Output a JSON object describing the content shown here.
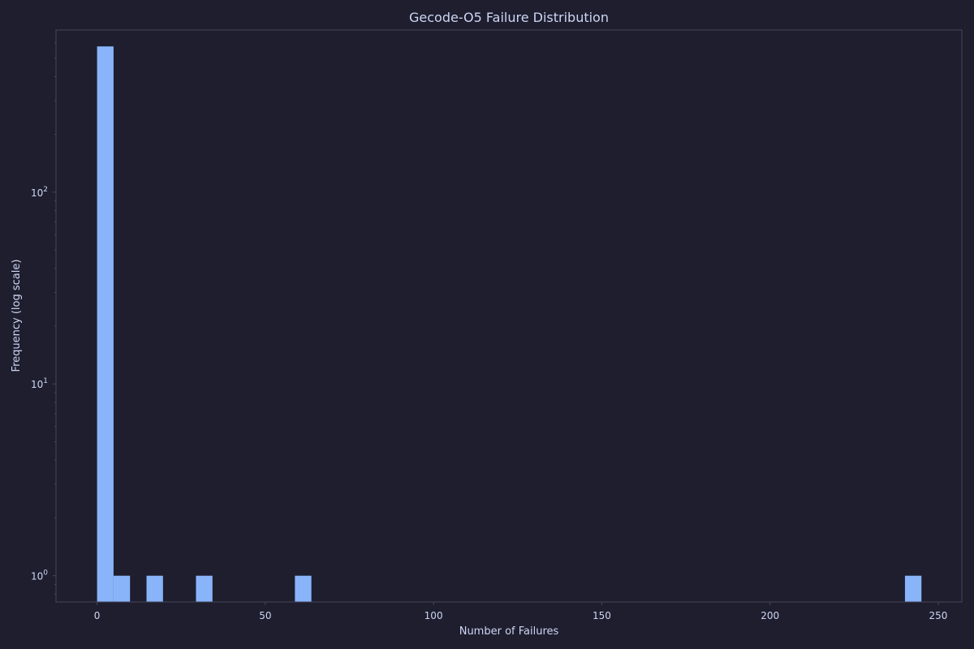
{
  "colors": {
    "background": "#1e1e2e",
    "bar": "#89b4fa",
    "text": "#cdd6f4",
    "axis": "#45475a"
  },
  "chart_data": {
    "type": "bar",
    "title": "Gecode-O5 Failure Distribution",
    "xlabel": "Number of Failures",
    "ylabel": "Frequency (log scale)",
    "yscale": "log",
    "xlim": [
      -12.2,
      257
    ],
    "ylim": [
      0.73,
      700
    ],
    "grid": false,
    "x_ticks": [
      0,
      50,
      100,
      150,
      200,
      250
    ],
    "x_tick_labels": [
      "0",
      "50",
      "100",
      "150",
      "200",
      "250"
    ],
    "y_ticks": [
      1,
      10,
      100
    ],
    "y_tick_labels": [
      {
        "base": "10",
        "exp": "0"
      },
      {
        "base": "10",
        "exp": "1"
      },
      {
        "base": "10",
        "exp": "2"
      }
    ],
    "bin_width": 4.9,
    "bins": [
      {
        "start": 0,
        "count": 575
      },
      {
        "start": 4.9,
        "count": 1
      },
      {
        "start": 14.7,
        "count": 1
      },
      {
        "start": 29.4,
        "count": 1
      },
      {
        "start": 58.8,
        "count": 1
      },
      {
        "start": 240.1,
        "count": 1
      }
    ]
  }
}
